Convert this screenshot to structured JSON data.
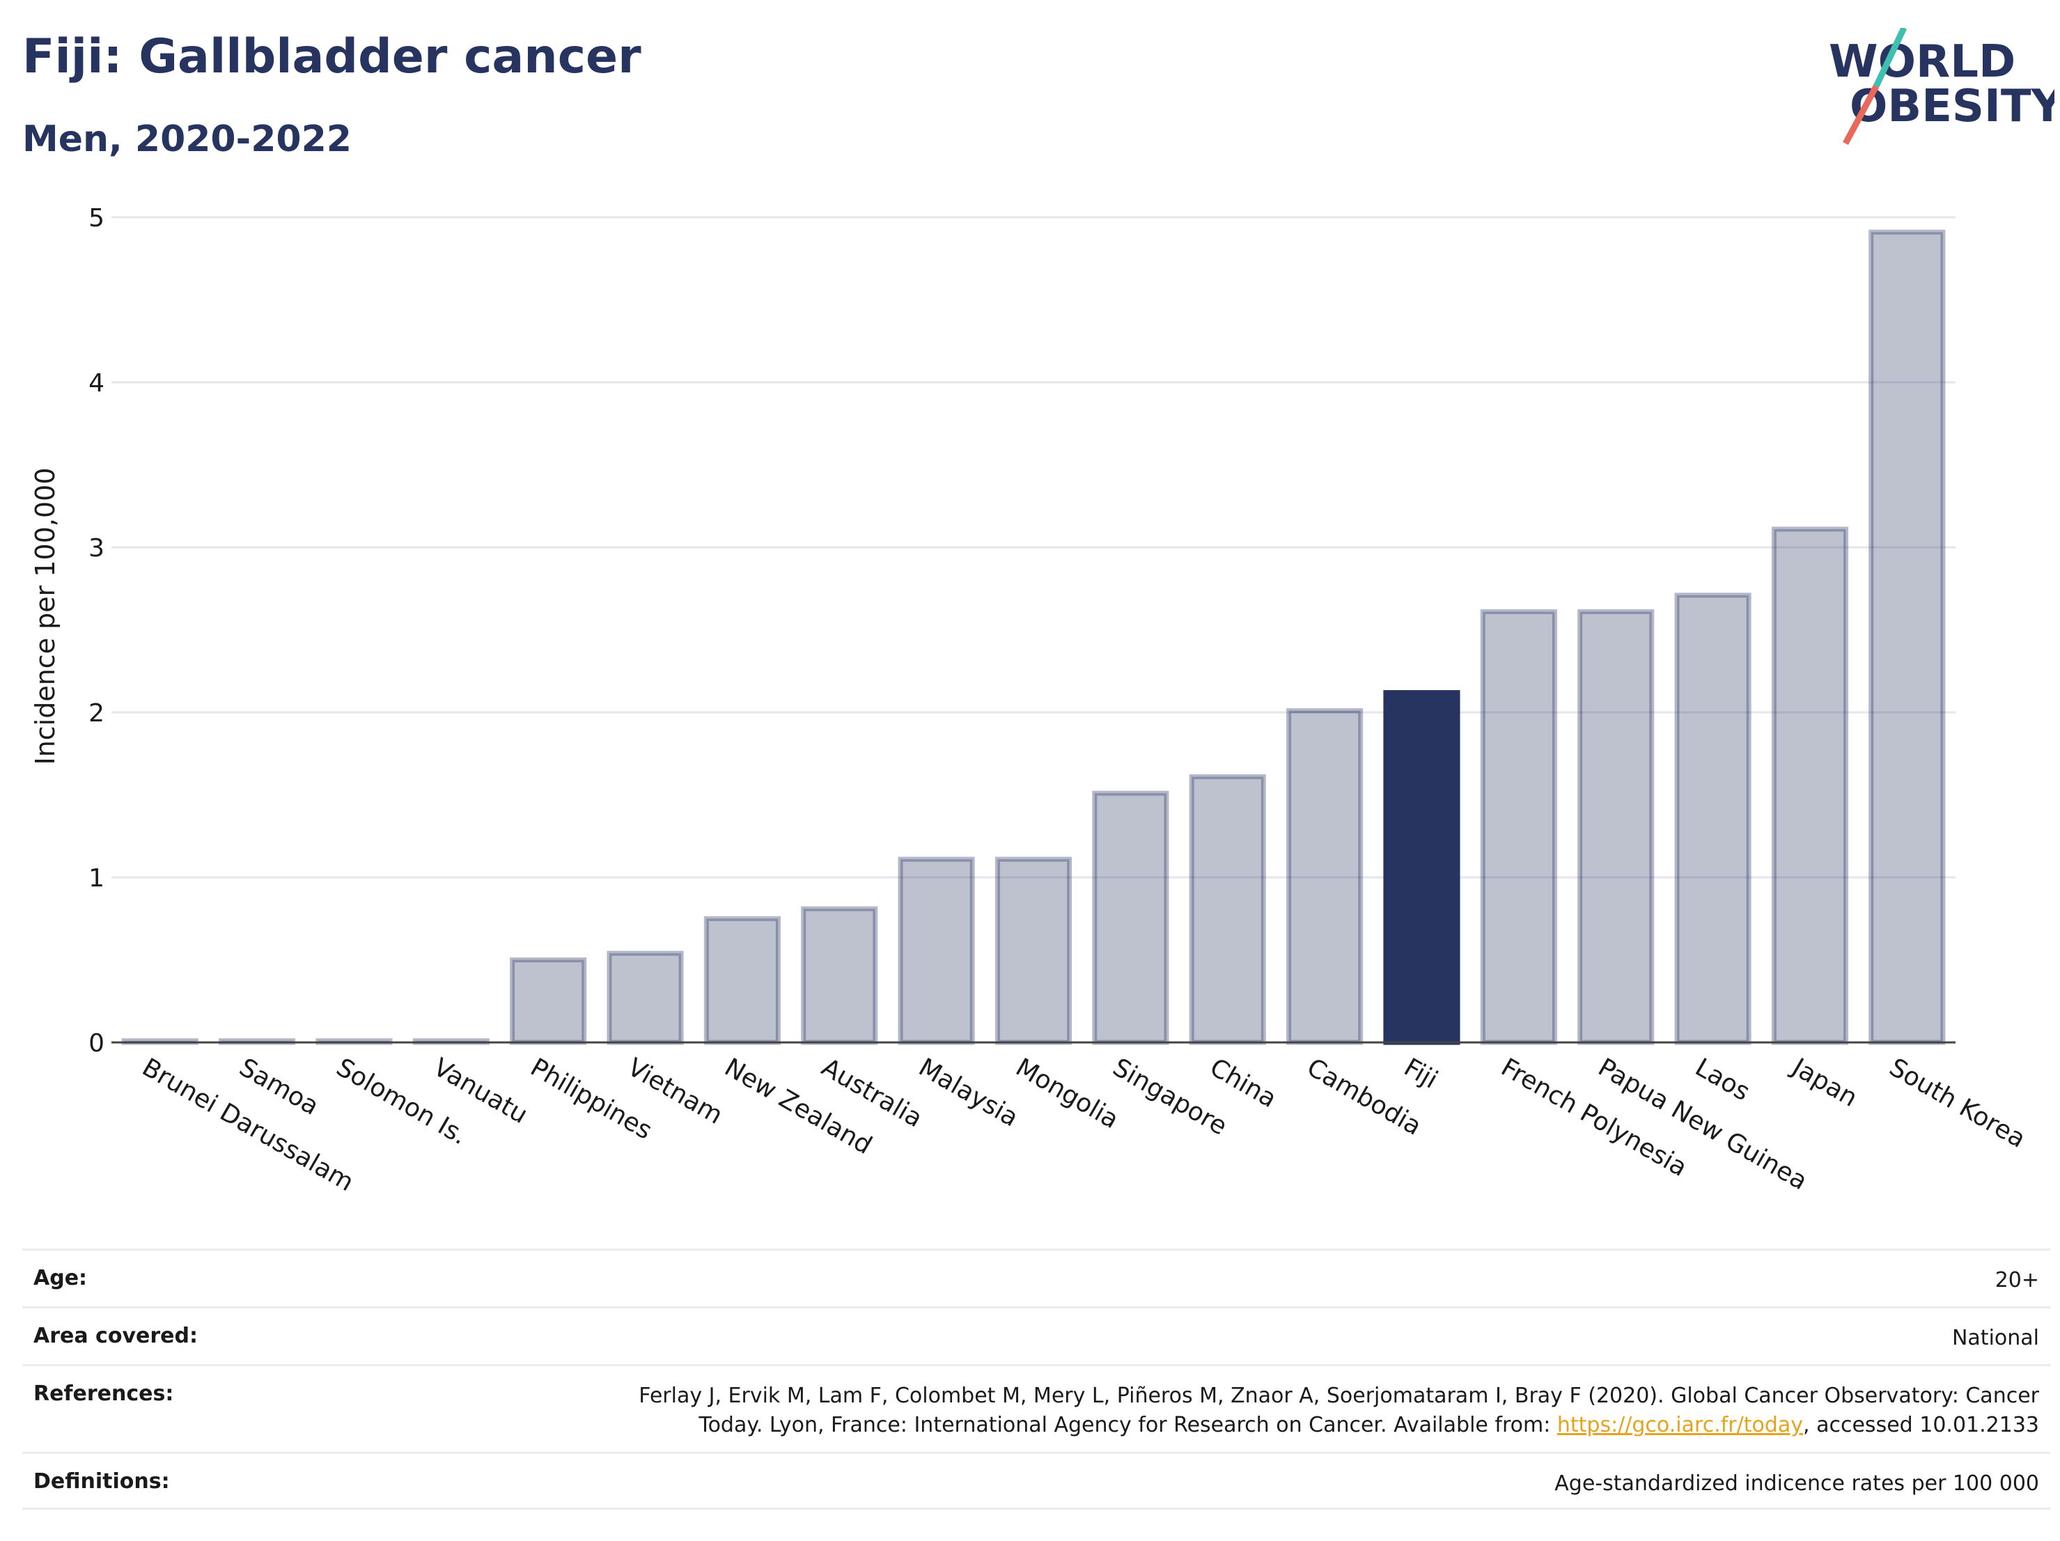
{
  "header": {
    "title": "Fiji: Gallbladder cancer",
    "subtitle": "Men, 2020-2022"
  },
  "logo": {
    "line1": "WORLD",
    "line2": "OBESITY",
    "colors": {
      "text": "#283460",
      "slash_top": "#3fbfb0",
      "slash_bottom": "#e8685a"
    }
  },
  "chart_data": {
    "type": "bar",
    "ylabel": "Incidence per 100,000",
    "xlabel": "",
    "ylim": [
      0,
      5
    ],
    "yticks": [
      0,
      1,
      2,
      3,
      4,
      5
    ],
    "grid": true,
    "highlight": "Fiji",
    "colors": {
      "bar": "#283460",
      "highlight": "#283460"
    },
    "categories": [
      "Brunei Darussalam",
      "Samoa",
      "Solomon Is.",
      "Vanuatu",
      "Philippines",
      "Vietnam",
      "New Zealand",
      "Australia",
      "Malaysia",
      "Mongolia",
      "Singapore",
      "China",
      "Cambodia",
      "Fiji",
      "French Polynesia",
      "Papua New Guinea",
      "Laos",
      "Japan",
      "South Korea"
    ],
    "values": [
      0.01,
      0.01,
      0.01,
      0.01,
      0.5,
      0.54,
      0.75,
      0.81,
      1.11,
      1.11,
      1.51,
      1.61,
      2.01,
      2.12,
      2.61,
      2.61,
      2.71,
      3.11,
      4.91
    ]
  },
  "meta": {
    "age_label": "Age:",
    "age_value": "20+",
    "area_label": "Area covered:",
    "area_value": "National",
    "references_label": "References:",
    "references_line1": "Ferlay J, Ervik M, Lam F, Colombet M, Mery L, Piñeros M, Znaor A, Soerjomataram I, Bray F (2020). Global Cancer Observatory: Cancer",
    "references_line2_pre": "Today. Lyon, France: International Agency for Research on Cancer. Available from: ",
    "references_link": "https://gco.iarc.fr/today",
    "references_line2_post": ", accessed 10.01.2133",
    "definitions_label": "Definitions:",
    "definitions_value": "Age-standardized indicence rates per 100 000"
  }
}
